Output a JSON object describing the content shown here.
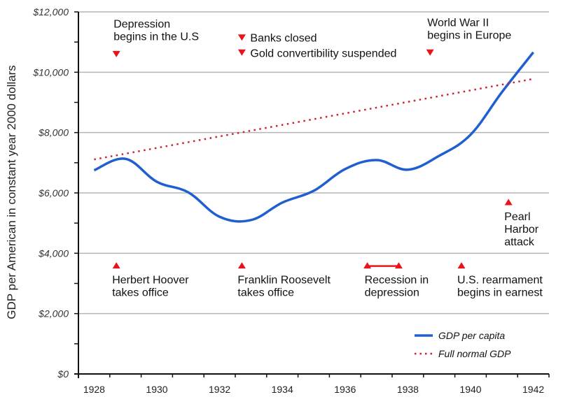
{
  "chart_data": {
    "type": "line",
    "title": "",
    "xlabel": "",
    "ylabel": "GDP per American in constant year 2000 dollars",
    "x": [
      1928,
      1929,
      1930,
      1931,
      1932,
      1933,
      1934,
      1935,
      1936,
      1937,
      1938,
      1939,
      1940,
      1941,
      1942
    ],
    "x_tick_labels": [
      "1928",
      "1930",
      "1932",
      "1934",
      "1936",
      "1938",
      "1940",
      "1942"
    ],
    "y_tick_labels": [
      "$0",
      "$2,000",
      "$4,000",
      "$6,000",
      "$8,000",
      "$10,000",
      "$12,000"
    ],
    "ylim": [
      0,
      12000
    ],
    "grid": true,
    "series": [
      {
        "name": "GDP per capita",
        "style": "solid",
        "color": "#1f5fcf",
        "values": [
          6750,
          7130,
          6370,
          6020,
          5210,
          5100,
          5680,
          6070,
          6790,
          7090,
          6770,
          7230,
          7930,
          9340,
          10660
        ]
      },
      {
        "name": "Full normal GDP",
        "style": "dotted",
        "color": "#cc2233",
        "values": [
          7110,
          null,
          null,
          null,
          null,
          null,
          null,
          null,
          null,
          null,
          null,
          null,
          null,
          null,
          9780
        ]
      }
    ],
    "legend": {
      "placement": "bottom-right",
      "entries": [
        "GDP per capita",
        "Full normal GDP"
      ]
    },
    "annotations": [
      {
        "text": [
          "Depression",
          "begins in the U.S"
        ],
        "year": 1929,
        "marker": "down",
        "level": 10600
      },
      {
        "text": [
          "Banks closed"
        ],
        "year": 1933,
        "marker": "down",
        "level": 11150
      },
      {
        "text": [
          "Gold convertibility suspended"
        ],
        "year": 1933,
        "marker": "down",
        "level": 10650
      },
      {
        "text": [
          "World War II",
          "begins in Europe"
        ],
        "year": 1939,
        "marker": "down",
        "level": 10650
      },
      {
        "text": [
          "Herbert Hoover",
          "takes office"
        ],
        "year": 1929,
        "marker": "up",
        "level": 3600
      },
      {
        "text": [
          "Franklin Roosevelt",
          "takes office"
        ],
        "year": 1933,
        "marker": "up",
        "level": 3600
      },
      {
        "text": [
          "Recession in",
          "depression"
        ],
        "year": 1937,
        "year_end": 1938,
        "marker": "range",
        "level": 3600
      },
      {
        "text": [
          "U.S. rearmament",
          "begins in earnest"
        ],
        "year": 1940,
        "marker": "up",
        "level": 3600
      },
      {
        "text": [
          "Pearl",
          "Harbor",
          "attack"
        ],
        "year": 1941.5,
        "marker": "up",
        "level": 5700
      }
    ],
    "marker_color": "#e8141c"
  }
}
